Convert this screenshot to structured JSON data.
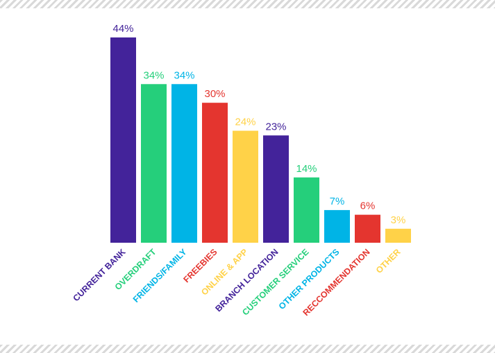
{
  "colors": {
    "purple": "#43239a",
    "green": "#25cf7b",
    "cyan": "#00b4e6",
    "red": "#e4352f",
    "yellow": "#ffd248",
    "stripe": "#d9d9d9"
  },
  "chart_data": {
    "type": "bar",
    "categories": [
      "CURRENT BANK",
      "OVERDRAFT",
      "FRIENDS/FAMILY",
      "FREEBIES",
      "ONLINE & APP",
      "BRANCH LOCATION",
      "CUSTOMER SERVICE",
      "OTHER PRODUCTS",
      "RECCOMMENDATION",
      "OTHER"
    ],
    "values": [
      44,
      34,
      34,
      30,
      24,
      23,
      14,
      7,
      6,
      3
    ],
    "value_labels": [
      "44%",
      "34%",
      "34%",
      "30%",
      "24%",
      "23%",
      "14%",
      "7%",
      "6%",
      "3%"
    ],
    "bar_colors": [
      "#43239a",
      "#25cf7b",
      "#00b4e6",
      "#e4352f",
      "#ffd248",
      "#43239a",
      "#25cf7b",
      "#00b4e6",
      "#e4352f",
      "#ffd248"
    ],
    "ylim": [
      0,
      44
    ],
    "grid": false,
    "title": "",
    "xlabel": "",
    "ylabel": ""
  }
}
